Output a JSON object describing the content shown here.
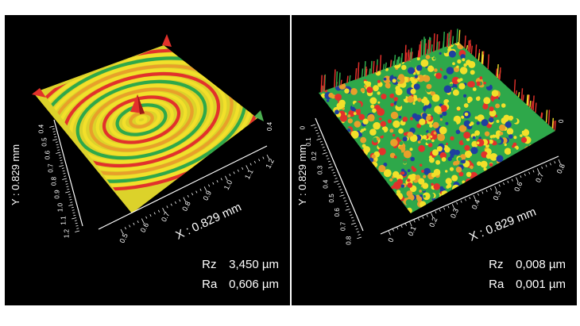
{
  "colors": {
    "background": "#000000",
    "text": "#ffffff",
    "surface_low": "#1f3fa0",
    "surface_mid": "#2ea84a",
    "surface_high": "#f2e02a",
    "surface_peak": "#e2312b"
  },
  "panels": [
    {
      "type": "surface-3d",
      "surface_style": "concentric-rings",
      "x_axis": {
        "label": "X : 0.829 mm",
        "ticks": [
          "0.5",
          "0.6",
          "0.7",
          "0.8",
          "0.9",
          "1.0",
          "1.1",
          "1.2"
        ]
      },
      "y_axis": {
        "label": "Y : 0.829 mm",
        "ticks": [
          "0.4",
          "0.5",
          "0.6",
          "0.7",
          "0.8",
          "0.9",
          "1.0",
          "1.1",
          "1.2"
        ]
      },
      "back_ticks": [
        "0.4"
      ],
      "stats": [
        {
          "label": "Rz",
          "value": "3,450 µm"
        },
        {
          "label": "Ra",
          "value": "0,606 µm"
        }
      ]
    },
    {
      "type": "surface-3d",
      "surface_style": "rough-spiky",
      "x_axis": {
        "label": "X : 0.829 mm",
        "ticks": [
          "0",
          "0.1",
          "0.2",
          "0.3",
          "0.4",
          "0.5",
          "0.6",
          "0.7",
          "0.8"
        ]
      },
      "y_axis": {
        "label": "Y : 0.829 mm",
        "ticks": [
          "0",
          "0.1",
          "0.2",
          "0.3",
          "0.4",
          "0.5",
          "0.6",
          "0.7",
          "0.8"
        ]
      },
      "back_ticks": [
        "0"
      ],
      "stats": [
        {
          "label": "Rz",
          "value": "0,008 µm"
        },
        {
          "label": "Ra",
          "value": "0,001 µm"
        }
      ]
    }
  ]
}
